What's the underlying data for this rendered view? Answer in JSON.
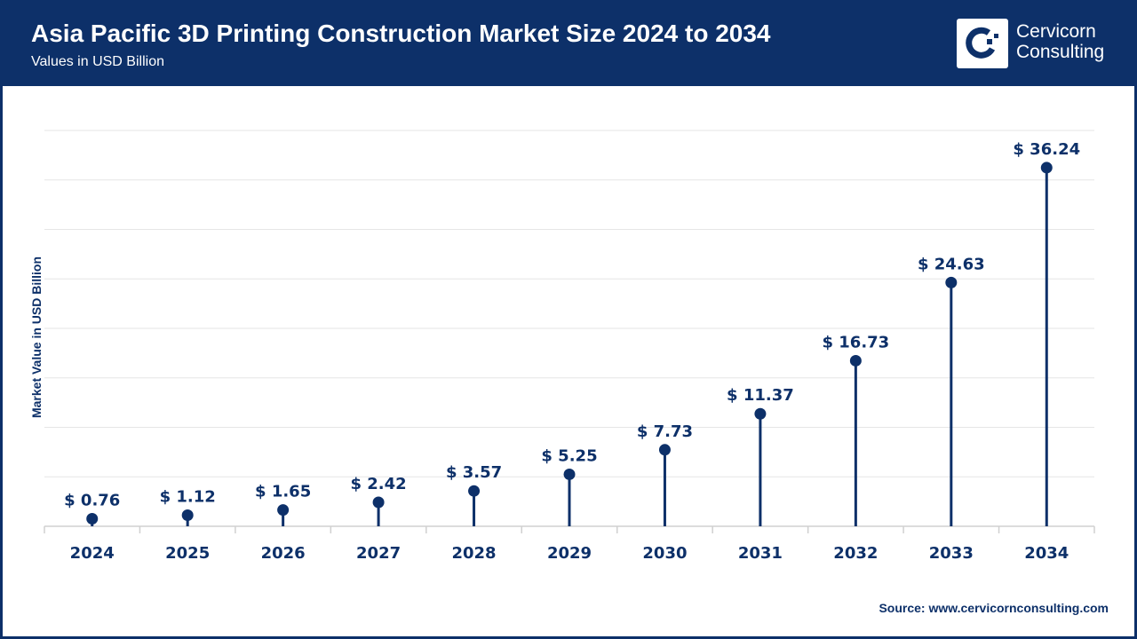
{
  "header": {
    "title": "Asia Pacific 3D Printing Construction Market Size 2024 to 2034",
    "subtitle": "Values in USD Billion"
  },
  "logo": {
    "line1": "Cervicorn",
    "line2": "Consulting"
  },
  "source": "Source: www.cervicornconsulting.com",
  "colors": {
    "primary": "#0d3069",
    "grid": "#e6e6e6"
  },
  "chart_data": {
    "type": "lollipop",
    "title": "Asia Pacific 3D Printing Construction Market Size 2024 to 2034",
    "ylabel": "Market Value in USD Billion",
    "categories": [
      "2024",
      "2025",
      "2026",
      "2027",
      "2028",
      "2029",
      "2030",
      "2031",
      "2032",
      "2033",
      "2034"
    ],
    "values": [
      0.76,
      1.12,
      1.65,
      2.42,
      3.57,
      5.25,
      7.73,
      11.37,
      16.73,
      24.63,
      36.24
    ],
    "labels": [
      "$ 0.76",
      "$ 1.12",
      "$ 1.65",
      "$ 2.42",
      "$ 3.57",
      "$ 5.25",
      "$ 7.73",
      "$ 11.37",
      "$ 16.73",
      "$ 24.63",
      "$ 36.24"
    ],
    "ylim": [
      0,
      40
    ],
    "grid": true
  }
}
